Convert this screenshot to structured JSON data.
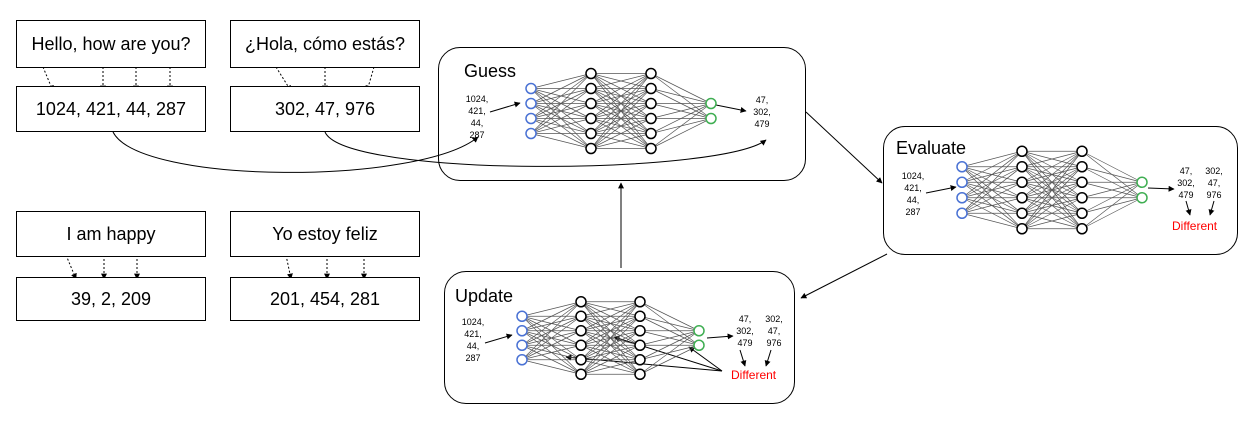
{
  "pairs": [
    {
      "source_sentence": "Hello, how are you?",
      "source_tokens": "1024, 421, 44, 287",
      "target_sentence": "¿Hola, cómo estás?",
      "target_tokens": "302, 47, 976"
    },
    {
      "source_sentence": "I am happy",
      "source_tokens": "39, 2, 209",
      "target_sentence": "Yo estoy feliz",
      "target_tokens": "201, 454, 281"
    }
  ],
  "guess": {
    "title": "Guess",
    "input": [
      "1024,",
      "421,",
      "44,",
      "287"
    ],
    "output": [
      "47,",
      "302,",
      "479"
    ]
  },
  "evaluate": {
    "title": "Evaluate",
    "input": [
      "1024,",
      "421,",
      "44,",
      "287"
    ],
    "output": [
      "47,",
      "302,",
      "479"
    ],
    "target": [
      "302,",
      "47,",
      "976"
    ],
    "verdict": "Different"
  },
  "update": {
    "title": "Update",
    "input": [
      "1024,",
      "421,",
      "44,",
      "287"
    ],
    "output": [
      "47,",
      "302,",
      "479"
    ],
    "target": [
      "302,",
      "47,",
      "976"
    ],
    "verdict": "Different"
  },
  "colors": {
    "input_node": "#4a72d4",
    "output_node": "#3fae52",
    "hidden_node": "#000000",
    "verdict": "#ff0000"
  }
}
